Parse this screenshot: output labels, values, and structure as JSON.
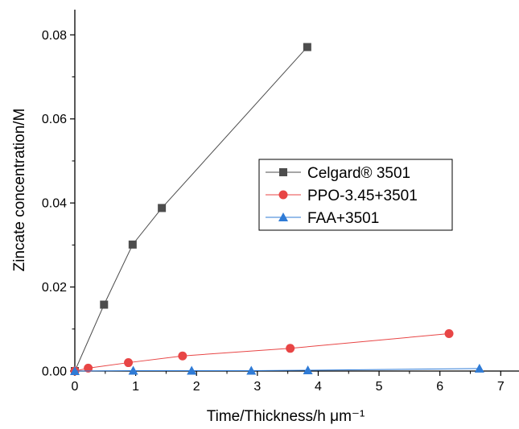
{
  "chart_data": {
    "type": "line",
    "title": "",
    "xlabel": "Time/Thickness/h μm⁻¹",
    "ylabel": "Zincate concentration/M",
    "xlim": [
      0,
      7.3
    ],
    "ylim": [
      0,
      0.086
    ],
    "xticks": [
      0,
      1,
      2,
      3,
      4,
      5,
      6,
      7
    ],
    "xtick_labels": [
      "0",
      "1",
      "2",
      "3",
      "4",
      "5",
      "6",
      "7"
    ],
    "yticks": [
      0,
      0.02,
      0.04,
      0.06,
      0.08
    ],
    "ytick_labels": [
      "0.00",
      "0.02",
      "0.04",
      "0.06",
      "0.08"
    ],
    "grid": false,
    "legend_position": "center-right",
    "series": [
      {
        "name": "Celgard® 3501",
        "color": "#4d4d4d",
        "marker": "square",
        "x": [
          0,
          0.48,
          0.95,
          1.43,
          3.82
        ],
        "y": [
          0,
          0.0158,
          0.0301,
          0.0388,
          0.0771
        ]
      },
      {
        "name": "PPO-3.45+3501",
        "color": "#e84545",
        "marker": "circle",
        "x": [
          0,
          0.22,
          0.88,
          1.77,
          3.54,
          6.15
        ],
        "y": [
          0,
          0.0007,
          0.002,
          0.0036,
          0.0054,
          0.0089
        ]
      },
      {
        "name": "FAA+3501",
        "color": "#2f7bd6",
        "marker": "triangle",
        "x": [
          0,
          0.96,
          1.92,
          2.9,
          3.83,
          6.65
        ],
        "y": [
          0,
          0.0001,
          0.0001,
          0.0001,
          0.0002,
          0.0006
        ]
      }
    ]
  }
}
